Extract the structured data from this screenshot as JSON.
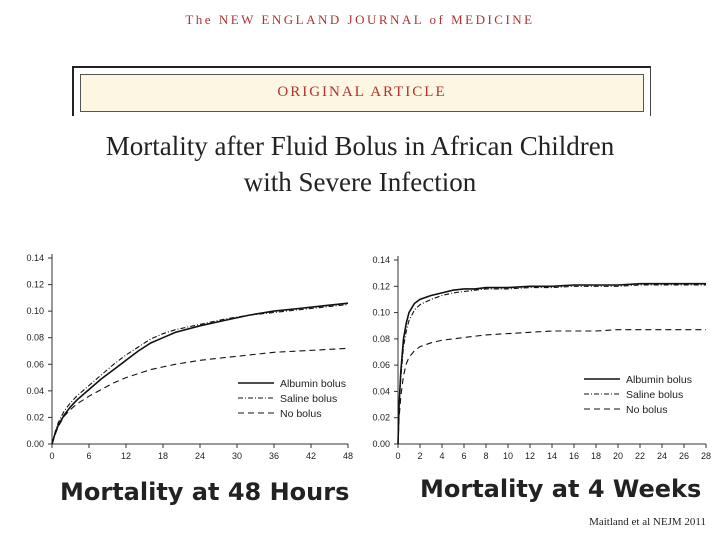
{
  "header": {
    "journal": "The NEW ENGLAND JOURNAL of MEDICINE",
    "article_type": "ORIGINAL ARTICLE",
    "title_line1": "Mortality after Fluid Bolus in African Children",
    "title_line2": "with Severe Infection"
  },
  "credit": "Maitland et al NEJM 2011",
  "chart_data": [
    {
      "type": "line",
      "caption": "Mortality at 48 Hours",
      "xlim": [
        0,
        48
      ],
      "xticks": [
        0,
        6,
        12,
        18,
        24,
        30,
        36,
        42,
        48
      ],
      "ylim": [
        0,
        0.14
      ],
      "yticks": [
        "0.00",
        "0.02",
        "0.04",
        "0.06",
        "0.08",
        "0.10",
        "0.12",
        "0.14"
      ],
      "legend_position": "bottom-right",
      "series": [
        {
          "name": "Albumin bolus",
          "style": "solid",
          "x": [
            0,
            0.5,
            1,
            2,
            3,
            4,
            6,
            8,
            10,
            12,
            14,
            16,
            18,
            20,
            24,
            28,
            32,
            36,
            40,
            44,
            48
          ],
          "y": [
            0,
            0.008,
            0.014,
            0.022,
            0.028,
            0.033,
            0.041,
            0.049,
            0.056,
            0.063,
            0.07,
            0.076,
            0.08,
            0.084,
            0.089,
            0.093,
            0.097,
            0.1,
            0.102,
            0.104,
            0.106
          ]
        },
        {
          "name": "Saline bolus",
          "style": "dashdot",
          "x": [
            0,
            0.5,
            1,
            2,
            3,
            4,
            6,
            8,
            10,
            12,
            14,
            16,
            18,
            20,
            24,
            28,
            32,
            36,
            40,
            44,
            48
          ],
          "y": [
            0,
            0.009,
            0.016,
            0.025,
            0.031,
            0.036,
            0.044,
            0.052,
            0.06,
            0.067,
            0.073,
            0.079,
            0.083,
            0.086,
            0.09,
            0.094,
            0.097,
            0.099,
            0.101,
            0.103,
            0.105
          ]
        },
        {
          "name": "No bolus",
          "style": "dashed",
          "x": [
            0,
            0.5,
            1,
            2,
            3,
            4,
            6,
            8,
            10,
            12,
            14,
            16,
            18,
            20,
            24,
            28,
            32,
            36,
            40,
            44,
            48
          ],
          "y": [
            0,
            0.007,
            0.013,
            0.021,
            0.026,
            0.03,
            0.036,
            0.041,
            0.046,
            0.05,
            0.053,
            0.056,
            0.058,
            0.06,
            0.063,
            0.065,
            0.067,
            0.069,
            0.07,
            0.071,
            0.072
          ]
        }
      ]
    },
    {
      "type": "line",
      "caption": "Mortality at 4 Weeks",
      "xlim": [
        0,
        28
      ],
      "xticks": [
        0,
        2,
        4,
        6,
        8,
        10,
        12,
        14,
        16,
        18,
        20,
        22,
        24,
        26,
        28
      ],
      "ylim": [
        0,
        0.14
      ],
      "yticks": [
        "0.00",
        "0.02",
        "0.04",
        "0.06",
        "0.08",
        "0.10",
        "0.12",
        "0.14"
      ],
      "legend_position": "bottom-right",
      "series": [
        {
          "name": "Albumin bolus",
          "style": "solid",
          "x": [
            0,
            0.1,
            0.25,
            0.5,
            0.75,
            1,
            1.5,
            2,
            3,
            4,
            5,
            6,
            7,
            8,
            10,
            12,
            14,
            16,
            18,
            20,
            22,
            24,
            26,
            28
          ],
          "y": [
            0,
            0.03,
            0.055,
            0.08,
            0.092,
            0.1,
            0.107,
            0.11,
            0.113,
            0.115,
            0.117,
            0.118,
            0.118,
            0.119,
            0.119,
            0.12,
            0.12,
            0.121,
            0.121,
            0.121,
            0.122,
            0.122,
            0.122,
            0.122
          ]
        },
        {
          "name": "Saline bolus",
          "style": "dashdot",
          "x": [
            0,
            0.1,
            0.25,
            0.5,
            0.75,
            1,
            1.5,
            2,
            3,
            4,
            5,
            6,
            7,
            8,
            10,
            12,
            14,
            16,
            18,
            20,
            22,
            24,
            26,
            28
          ],
          "y": [
            0,
            0.028,
            0.05,
            0.074,
            0.086,
            0.094,
            0.102,
            0.106,
            0.11,
            0.113,
            0.115,
            0.116,
            0.117,
            0.118,
            0.118,
            0.119,
            0.119,
            0.12,
            0.12,
            0.12,
            0.121,
            0.121,
            0.121,
            0.121
          ]
        },
        {
          "name": "No bolus",
          "style": "dashed",
          "x": [
            0,
            0.1,
            0.25,
            0.5,
            0.75,
            1,
            1.5,
            2,
            3,
            4,
            5,
            6,
            7,
            8,
            10,
            12,
            14,
            16,
            18,
            20,
            22,
            24,
            26,
            28
          ],
          "y": [
            0,
            0.02,
            0.036,
            0.052,
            0.061,
            0.066,
            0.071,
            0.074,
            0.077,
            0.079,
            0.08,
            0.081,
            0.082,
            0.083,
            0.084,
            0.085,
            0.086,
            0.086,
            0.086,
            0.087,
            0.087,
            0.087,
            0.087,
            0.087
          ]
        }
      ]
    }
  ]
}
